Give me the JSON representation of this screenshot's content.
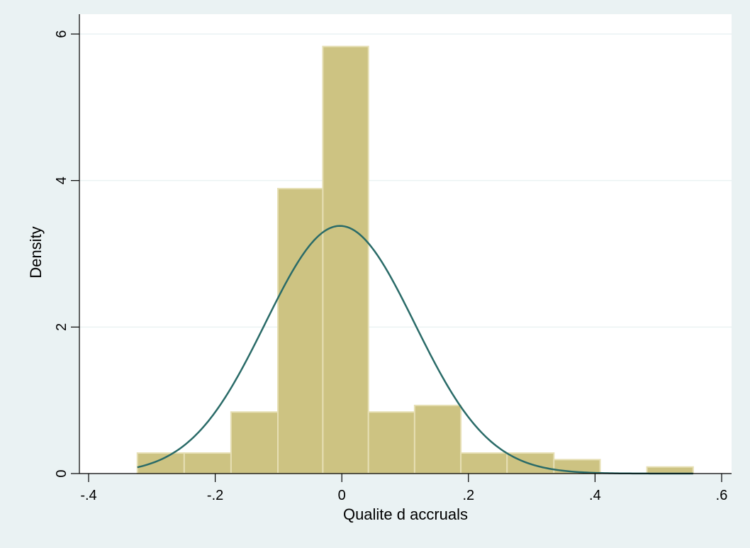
{
  "chart_data": {
    "type": "bar",
    "subtype": "histogram",
    "xlabel": "Qualite d accruals",
    "ylabel": "Density",
    "xlim": [
      -0.4,
      0.6
    ],
    "ylim": [
      0,
      6
    ],
    "x_ticks": [
      -0.4,
      -0.2,
      0,
      0.2,
      0.4,
      0.6
    ],
    "x_tick_labels": [
      "-.4",
      "-.2",
      "0",
      ".2",
      ".4",
      ".6"
    ],
    "y_ticks": [
      0,
      2,
      4,
      6
    ],
    "y_tick_labels": [
      "0",
      "2",
      "4",
      "6"
    ],
    "grid": "horizontal",
    "bins": [
      {
        "start": -0.323,
        "end": -0.249,
        "density": 0.28
      },
      {
        "start": -0.249,
        "end": -0.175,
        "density": 0.28
      },
      {
        "start": -0.175,
        "end": -0.101,
        "density": 0.84
      },
      {
        "start": -0.101,
        "end": -0.03,
        "density": 3.89
      },
      {
        "start": -0.03,
        "end": 0.042,
        "density": 5.83
      },
      {
        "start": 0.042,
        "end": 0.115,
        "density": 0.84
      },
      {
        "start": 0.115,
        "end": 0.188,
        "density": 0.93
      },
      {
        "start": 0.188,
        "end": 0.261,
        "density": 0.28
      },
      {
        "start": 0.261,
        "end": 0.335,
        "density": 0.28
      },
      {
        "start": 0.335,
        "end": 0.408,
        "density": 0.19
      },
      {
        "start": 0.408,
        "end": 0.482,
        "density": 0
      },
      {
        "start": 0.482,
        "end": 0.555,
        "density": 0.09
      }
    ],
    "normal_curve": {
      "mean": -0.003,
      "sd": 0.118,
      "x_range": [
        -0.323,
        0.555
      ]
    },
    "colors": {
      "background": "#eaf2f3",
      "plot_area": "#ffffff",
      "bar_fill": "#cdc382",
      "bar_edge": "#e6dfb4",
      "curve": "#2a6b68",
      "grid": "#eaf2f3"
    }
  }
}
